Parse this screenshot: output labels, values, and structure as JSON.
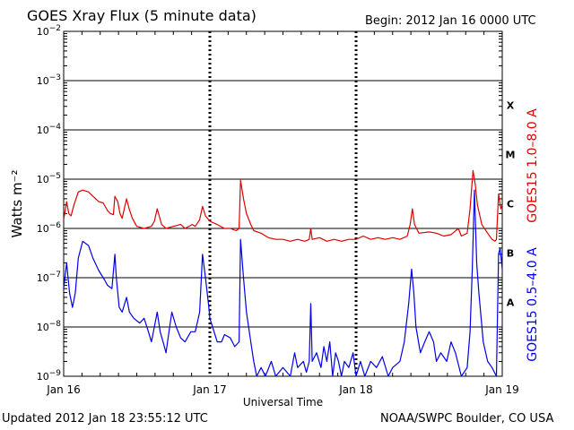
{
  "header": {
    "title": "GOES Xray Flux (5 minute data)",
    "begin": "Begin:  2012 Jan 16 0000 UTC"
  },
  "footer": {
    "updated": "Updated 2012 Jan 18 23:55:12 UTC",
    "credit": "NOAA/SWPC Boulder, CO USA"
  },
  "colors": {
    "long": "#e00000",
    "short": "#0000e8",
    "axes": "#000000",
    "background": "#ffffff"
  },
  "chart_data": {
    "type": "line",
    "title": "GOES Xray Flux (5 minute data)",
    "xlabel": "Universal Time",
    "ylabel": "Watts m⁻²",
    "yscale": "log",
    "ylim": [
      1e-09,
      0.01
    ],
    "x_unit": "days since 2012 Jan 16 0000 UTC",
    "xlim": [
      0,
      3
    ],
    "x_ticks": [
      {
        "x": 0,
        "label": "Jan 16"
      },
      {
        "x": 1,
        "label": "Jan 17"
      },
      {
        "x": 2,
        "label": "Jan 18"
      },
      {
        "x": 3,
        "label": "Jan 19"
      }
    ],
    "y_ticks": [
      -9,
      -8,
      -7,
      -6,
      -5,
      -4,
      -3,
      -2
    ],
    "flare_classes": [
      {
        "label": "A",
        "exp": -7.5
      },
      {
        "label": "B",
        "exp": -6.5
      },
      {
        "label": "C",
        "exp": -5.5
      },
      {
        "label": "M",
        "exp": -4.5
      },
      {
        "label": "X",
        "exp": -3.5
      }
    ],
    "grid": "horizontal lines at each decade",
    "series": [
      {
        "name": "GOES15 1.0–8.0 A",
        "color": "#e00000",
        "points": [
          [
            0.0,
            1.5e-06
          ],
          [
            0.02,
            3.5e-06
          ],
          [
            0.035,
            2e-06
          ],
          [
            0.05,
            1.8e-06
          ],
          [
            0.07,
            3e-06
          ],
          [
            0.1,
            5.5e-06
          ],
          [
            0.13,
            6e-06
          ],
          [
            0.17,
            5.5e-06
          ],
          [
            0.2,
            4.5e-06
          ],
          [
            0.24,
            3.5e-06
          ],
          [
            0.27,
            3.3e-06
          ],
          [
            0.3,
            2.3e-06
          ],
          [
            0.32,
            2e-06
          ],
          [
            0.34,
            1.9e-06
          ],
          [
            0.35,
            4.5e-06
          ],
          [
            0.37,
            3.5e-06
          ],
          [
            0.385,
            2e-06
          ],
          [
            0.4,
            1.6e-06
          ],
          [
            0.43,
            4e-06
          ],
          [
            0.45,
            2.4e-06
          ],
          [
            0.47,
            1.6e-06
          ],
          [
            0.5,
            1.1e-06
          ],
          [
            0.55,
            1e-06
          ],
          [
            0.6,
            1.1e-06
          ],
          [
            0.62,
            1.4e-06
          ],
          [
            0.64,
            2.5e-06
          ],
          [
            0.67,
            1.2e-06
          ],
          [
            0.7,
            1e-06
          ],
          [
            0.75,
            1.1e-06
          ],
          [
            0.8,
            1.2e-06
          ],
          [
            0.83,
            1e-06
          ],
          [
            0.88,
            1.2e-06
          ],
          [
            0.9,
            1.1e-06
          ],
          [
            0.93,
            1.5e-06
          ],
          [
            0.95,
            2.8e-06
          ],
          [
            0.97,
            1.8e-06
          ],
          [
            1.0,
            1.4e-06
          ],
          [
            1.05,
            1.2e-06
          ],
          [
            1.1,
            1e-06
          ],
          [
            1.14,
            1e-06
          ],
          [
            1.18,
            9e-07
          ],
          [
            1.2,
            1e-06
          ],
          [
            1.21,
            9.5e-06
          ],
          [
            1.23,
            4e-06
          ],
          [
            1.25,
            2e-06
          ],
          [
            1.28,
            1.2e-06
          ],
          [
            1.3,
            9e-07
          ],
          [
            1.35,
            8e-07
          ],
          [
            1.4,
            6.5e-07
          ],
          [
            1.45,
            6e-07
          ],
          [
            1.5,
            6e-07
          ],
          [
            1.55,
            5.5e-07
          ],
          [
            1.6,
            6e-07
          ],
          [
            1.65,
            5.5e-07
          ],
          [
            1.68,
            6e-07
          ],
          [
            1.69,
            1e-06
          ],
          [
            1.7,
            6e-07
          ],
          [
            1.75,
            6.5e-07
          ],
          [
            1.8,
            5.5e-07
          ],
          [
            1.85,
            6e-07
          ],
          [
            1.9,
            5.5e-07
          ],
          [
            1.95,
            6e-07
          ],
          [
            2.0,
            6e-07
          ],
          [
            2.05,
            7e-07
          ],
          [
            2.1,
            6e-07
          ],
          [
            2.15,
            6.5e-07
          ],
          [
            2.2,
            6e-07
          ],
          [
            2.25,
            6.5e-07
          ],
          [
            2.3,
            6e-07
          ],
          [
            2.35,
            7e-07
          ],
          [
            2.37,
            1.2e-06
          ],
          [
            2.385,
            2.5e-06
          ],
          [
            2.4,
            1.2e-06
          ],
          [
            2.43,
            8e-07
          ],
          [
            2.5,
            8.5e-07
          ],
          [
            2.55,
            8e-07
          ],
          [
            2.6,
            7e-07
          ],
          [
            2.65,
            7.5e-07
          ],
          [
            2.7,
            1e-06
          ],
          [
            2.72,
            7e-07
          ],
          [
            2.76,
            8e-07
          ],
          [
            2.78,
            2.5e-06
          ],
          [
            2.8,
            1.5e-05
          ],
          [
            2.815,
            8e-06
          ],
          [
            2.83,
            3e-06
          ],
          [
            2.86,
            1.2e-06
          ],
          [
            2.9,
            8e-07
          ],
          [
            2.93,
            6e-07
          ],
          [
            2.95,
            5.5e-07
          ],
          [
            2.96,
            6e-07
          ],
          [
            2.975,
            5e-06
          ],
          [
            2.99,
            2.5e-06
          ],
          [
            3.0,
            3e-06
          ]
        ]
      },
      {
        "name": "GOES15 0.5–4.0 A",
        "color": "#0000e8",
        "points": [
          [
            0.0,
            6e-08
          ],
          [
            0.02,
            2e-07
          ],
          [
            0.04,
            5e-08
          ],
          [
            0.06,
            2.5e-08
          ],
          [
            0.08,
            5e-08
          ],
          [
            0.1,
            2.5e-07
          ],
          [
            0.13,
            5.5e-07
          ],
          [
            0.17,
            4.5e-07
          ],
          [
            0.2,
            2.5e-07
          ],
          [
            0.24,
            1.4e-07
          ],
          [
            0.28,
            9e-08
          ],
          [
            0.3,
            7e-08
          ],
          [
            0.33,
            6e-08
          ],
          [
            0.35,
            3e-07
          ],
          [
            0.36,
            1e-07
          ],
          [
            0.38,
            2.5e-08
          ],
          [
            0.4,
            2e-08
          ],
          [
            0.43,
            4e-08
          ],
          [
            0.45,
            2e-08
          ],
          [
            0.48,
            1.5e-08
          ],
          [
            0.52,
            1.2e-08
          ],
          [
            0.55,
            1.5e-08
          ],
          [
            0.58,
            8e-09
          ],
          [
            0.6,
            5e-09
          ],
          [
            0.62,
            1e-08
          ],
          [
            0.64,
            2e-08
          ],
          [
            0.66,
            8e-09
          ],
          [
            0.68,
            5e-09
          ],
          [
            0.7,
            3e-09
          ],
          [
            0.72,
            8e-09
          ],
          [
            0.74,
            2e-08
          ],
          [
            0.77,
            1e-08
          ],
          [
            0.8,
            6e-09
          ],
          [
            0.83,
            5e-09
          ],
          [
            0.87,
            8e-09
          ],
          [
            0.9,
            8e-09
          ],
          [
            0.93,
            2e-08
          ],
          [
            0.95,
            3e-07
          ],
          [
            0.97,
            1e-07
          ],
          [
            0.99,
            3e-08
          ],
          [
            1.0,
            1.5e-08
          ],
          [
            1.05,
            5e-09
          ],
          [
            1.08,
            5e-09
          ],
          [
            1.1,
            7e-09
          ],
          [
            1.14,
            6e-09
          ],
          [
            1.17,
            4e-09
          ],
          [
            1.2,
            5e-09
          ],
          [
            1.21,
            6e-07
          ],
          [
            1.23,
            1e-07
          ],
          [
            1.25,
            2e-08
          ],
          [
            1.28,
            5e-09
          ],
          [
            1.3,
            2e-09
          ],
          [
            1.32,
            1e-09
          ],
          [
            1.35,
            1.5e-09
          ],
          [
            1.38,
            1e-09
          ],
          [
            1.42,
            2e-09
          ],
          [
            1.45,
            1e-09
          ],
          [
            1.5,
            1.5e-09
          ],
          [
            1.55,
            1e-09
          ],
          [
            1.58,
            3e-09
          ],
          [
            1.6,
            1.5e-09
          ],
          [
            1.64,
            2e-09
          ],
          [
            1.66,
            1.2e-09
          ],
          [
            1.68,
            2e-09
          ],
          [
            1.69,
            3e-08
          ],
          [
            1.7,
            2e-09
          ],
          [
            1.73,
            3e-09
          ],
          [
            1.76,
            1.5e-09
          ],
          [
            1.78,
            4e-09
          ],
          [
            1.8,
            2e-09
          ],
          [
            1.82,
            5e-09
          ],
          [
            1.84,
            1e-09
          ],
          [
            1.86,
            3e-09
          ],
          [
            1.88,
            2e-09
          ],
          [
            1.9,
            1e-09
          ],
          [
            1.92,
            2e-09
          ],
          [
            1.95,
            1.5e-09
          ],
          [
            1.98,
            3e-09
          ],
          [
            2.0,
            1e-09
          ],
          [
            2.03,
            2e-09
          ],
          [
            2.06,
            1e-09
          ],
          [
            2.1,
            2e-09
          ],
          [
            2.14,
            1.5e-09
          ],
          [
            2.18,
            2.5e-09
          ],
          [
            2.22,
            1e-09
          ],
          [
            2.25,
            1.5e-09
          ],
          [
            2.3,
            2e-09
          ],
          [
            2.33,
            5e-09
          ],
          [
            2.36,
            3e-08
          ],
          [
            2.38,
            1.5e-07
          ],
          [
            2.395,
            5e-08
          ],
          [
            2.41,
            1e-08
          ],
          [
            2.44,
            3e-09
          ],
          [
            2.47,
            5e-09
          ],
          [
            2.5,
            8e-09
          ],
          [
            2.53,
            5e-09
          ],
          [
            2.55,
            2e-09
          ],
          [
            2.58,
            3e-09
          ],
          [
            2.62,
            2e-09
          ],
          [
            2.65,
            5e-09
          ],
          [
            2.68,
            3e-09
          ],
          [
            2.72,
            1e-09
          ],
          [
            2.76,
            1.5e-09
          ],
          [
            2.78,
            8e-09
          ],
          [
            2.795,
            1.5e-07
          ],
          [
            2.81,
            6e-06
          ],
          [
            2.825,
            2e-07
          ],
          [
            2.84,
            5e-08
          ],
          [
            2.87,
            5e-09
          ],
          [
            2.9,
            2e-09
          ],
          [
            2.93,
            1.5e-09
          ],
          [
            2.96,
            1e-09
          ],
          [
            2.975,
            3e-07
          ],
          [
            2.985,
            4e-07
          ],
          [
            3.0,
            1.5e-07
          ]
        ]
      }
    ]
  }
}
